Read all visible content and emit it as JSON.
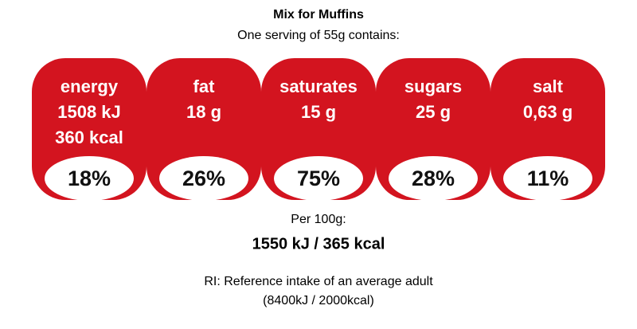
{
  "title": "Mix for Muffins",
  "subtitle": "One serving of 55g contains:",
  "items": [
    {
      "name": "energy",
      "amounts": [
        "1508 kJ",
        "360 kcal"
      ],
      "percent": "18%"
    },
    {
      "name": "fat",
      "amounts": [
        "18 g"
      ],
      "percent": "26%"
    },
    {
      "name": "saturates",
      "amounts": [
        "15 g"
      ],
      "percent": "75%"
    },
    {
      "name": "sugars",
      "amounts": [
        "25 g"
      ],
      "percent": "28%"
    },
    {
      "name": "salt",
      "amounts": [
        "0,63 g"
      ],
      "percent": "11%"
    }
  ],
  "per_100g": {
    "label": "Per 100g:",
    "value": "1550 kJ / 365 kcal"
  },
  "note": {
    "line1": "RI: Reference intake of an average adult",
    "line2": "(8400kJ / 2000kcal)"
  }
}
